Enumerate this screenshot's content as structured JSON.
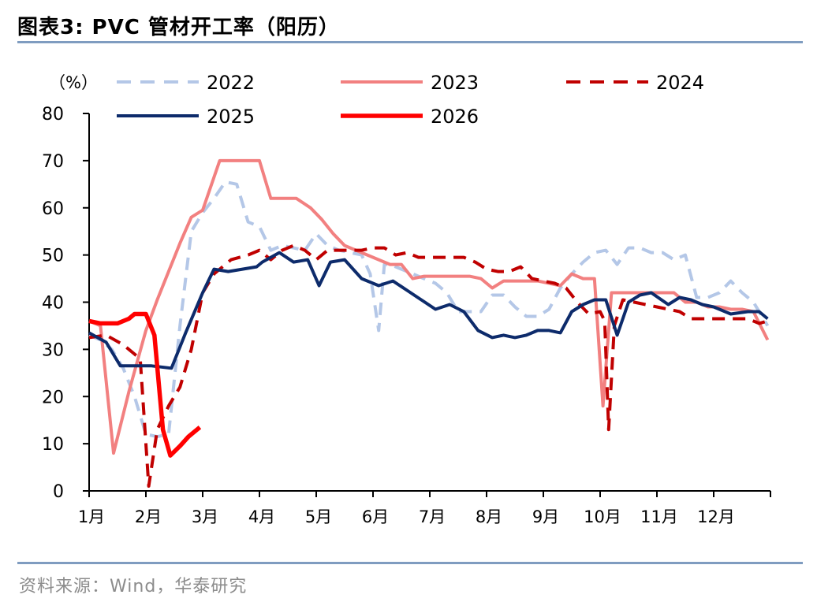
{
  "title": "图表3:  PVC 管材开工率（阳历）",
  "source": "资料来源：Wind，华泰研究",
  "chart_data": {
    "type": "line",
    "title": "PVC 管材开工率（阳历）",
    "ylabel": "（%）",
    "xlabel": "",
    "ylim": [
      0,
      80
    ],
    "yticks": [
      0,
      10,
      20,
      30,
      40,
      50,
      60,
      70,
      80
    ],
    "xlim": [
      1,
      13
    ],
    "categories": [
      "1月",
      "2月",
      "3月",
      "4月",
      "5月",
      "6月",
      "7月",
      "8月",
      "9月",
      "10月",
      "11月",
      "12月"
    ],
    "series": [
      {
        "name": "2022",
        "color": "#b4c7e7",
        "dash": "dashed",
        "width": 4,
        "x": [
          1.0,
          1.2,
          1.4,
          1.6,
          1.8,
          2.0,
          2.2,
          2.4,
          2.6,
          2.8,
          3.0,
          3.2,
          3.4,
          3.6,
          3.8,
          4.0,
          4.2,
          4.4,
          4.6,
          4.8,
          5.0,
          5.2,
          5.4,
          5.6,
          5.8,
          5.95,
          6.1,
          6.2,
          6.3,
          6.5,
          6.7,
          6.9,
          7.1,
          7.3,
          7.5,
          7.7,
          7.9,
          8.1,
          8.3,
          8.5,
          8.7,
          8.9,
          9.1,
          9.3,
          9.5,
          9.7,
          9.9,
          10.1,
          10.3,
          10.5,
          10.7,
          10.9,
          11.1,
          11.3,
          11.5,
          11.7,
          11.9,
          12.1,
          12.3,
          12.5,
          12.7,
          12.95
        ],
        "values": [
          33,
          32,
          30,
          26,
          20,
          12,
          11.5,
          12,
          35,
          55,
          59,
          62,
          65.5,
          65,
          57,
          56,
          51,
          52,
          51.5,
          51,
          54.5,
          52,
          51,
          50.5,
          50,
          46,
          34,
          48,
          48,
          47,
          46,
          45,
          44,
          42,
          38,
          38,
          38,
          41.5,
          41.5,
          39,
          37,
          37,
          38.5,
          43,
          46,
          48.5,
          50.5,
          51,
          48,
          51.5,
          51.5,
          50.5,
          50.5,
          49,
          50,
          41,
          41,
          42,
          44.5,
          42,
          40,
          35
        ]
      },
      {
        "name": "2023",
        "color": "#f28080",
        "dash": "solid",
        "width": 4,
        "x": [
          1.0,
          1.2,
          1.43,
          1.7,
          2.0,
          2.2,
          2.4,
          2.6,
          2.8,
          3.0,
          3.3,
          3.7,
          4.0,
          4.2,
          4.4,
          4.65,
          4.9,
          5.1,
          5.3,
          5.5,
          5.7,
          5.9,
          6.1,
          6.3,
          6.5,
          6.7,
          6.9,
          7.1,
          7.3,
          7.5,
          7.7,
          7.9,
          8.1,
          8.3,
          8.5,
          8.7,
          8.9,
          9.1,
          9.3,
          9.5,
          9.7,
          9.9,
          10.05,
          10.2,
          10.35,
          10.5,
          10.7,
          10.9,
          11.1,
          11.3,
          11.5,
          11.7,
          11.9,
          12.1,
          12.3,
          12.5,
          12.7,
          12.95
        ],
        "values": [
          36,
          35,
          8,
          21,
          34,
          40.5,
          46.5,
          52.5,
          58,
          59.5,
          70,
          70,
          70,
          62,
          62,
          62,
          60,
          57.5,
          54.5,
          52,
          51,
          50,
          49,
          48,
          48,
          45,
          45.5,
          45.5,
          45.5,
          45.5,
          45.5,
          45,
          43,
          44.5,
          44.5,
          44.5,
          44.5,
          44,
          43.5,
          46,
          45,
          45,
          18,
          42,
          42,
          42,
          42,
          42,
          42,
          42,
          40,
          40,
          39,
          39,
          38.5,
          38.5,
          38,
          32
        ]
      },
      {
        "name": "2024",
        "color": "#c00000",
        "dash": "dashed",
        "width": 4,
        "x": [
          1.0,
          1.3,
          1.6,
          1.8,
          1.9,
          2.0,
          2.05,
          2.2,
          2.4,
          2.6,
          2.8,
          3.0,
          3.2,
          3.5,
          3.8,
          4.0,
          4.2,
          4.4,
          4.6,
          4.8,
          5.0,
          5.2,
          5.4,
          5.6,
          5.8,
          6.0,
          6.2,
          6.4,
          6.6,
          6.8,
          7.0,
          7.2,
          7.4,
          7.6,
          7.8,
          8.0,
          8.2,
          8.4,
          8.6,
          8.8,
          9.0,
          9.2,
          9.4,
          9.6,
          9.8,
          10.0,
          10.08,
          10.15,
          10.25,
          10.4,
          10.6,
          10.8,
          11.0,
          11.2,
          11.4,
          11.6,
          11.8,
          12.0,
          12.2,
          12.4,
          12.6,
          12.8,
          12.95
        ],
        "values": [
          32.5,
          33,
          31,
          29,
          28,
          10,
          1,
          13,
          18,
          22,
          30,
          42,
          46,
          49,
          50,
          51,
          49,
          51,
          52,
          51,
          49,
          51,
          51,
          51,
          51,
          51.5,
          51.5,
          50,
          50.5,
          49.5,
          49.5,
          49.5,
          49.5,
          49.5,
          48.5,
          47,
          46.5,
          46.5,
          47.5,
          45,
          44.5,
          44,
          43,
          40,
          37.5,
          38,
          36,
          13,
          35,
          40.5,
          40,
          39.5,
          39,
          38.5,
          38,
          36.5,
          36.5,
          36.5,
          36.5,
          36.5,
          36.5,
          35.5,
          36
        ]
      },
      {
        "name": "2025",
        "color": "#0d2b6b",
        "dash": "solid",
        "width": 4,
        "x": [
          1.0,
          1.3,
          1.55,
          1.8,
          2.1,
          2.45,
          2.7,
          3.0,
          3.2,
          3.45,
          3.7,
          3.95,
          4.05,
          4.35,
          4.6,
          4.85,
          5.05,
          5.25,
          5.5,
          5.8,
          6.1,
          6.35,
          6.6,
          6.85,
          7.1,
          7.35,
          7.6,
          7.85,
          8.1,
          8.3,
          8.5,
          8.7,
          8.9,
          9.1,
          9.3,
          9.5,
          9.7,
          9.9,
          10.1,
          10.3,
          10.5,
          10.7,
          10.9,
          11.2,
          11.4,
          11.6,
          11.8,
          12.0,
          12.3,
          12.6,
          12.8,
          12.95
        ],
        "values": [
          33.5,
          31.5,
          26.5,
          26.5,
          26.5,
          26,
          33.5,
          42,
          47,
          46.5,
          47,
          47.5,
          48.5,
          50.5,
          48.5,
          49,
          43.5,
          48.5,
          49,
          45,
          43.5,
          44.5,
          42.5,
          40.5,
          38.5,
          39.5,
          38,
          34,
          32.5,
          33,
          32.5,
          33,
          34,
          34,
          33.5,
          38,
          39.5,
          40.5,
          40.5,
          33,
          40,
          41.5,
          42,
          39.5,
          41,
          40.5,
          39.5,
          39,
          37.5,
          38,
          38,
          36.5
        ]
      },
      {
        "name": "2026",
        "color": "#ff0000",
        "dash": "solid",
        "width": 5.5,
        "x": [
          1.0,
          1.2,
          1.5,
          1.7,
          1.8,
          2.0,
          2.15,
          2.3,
          2.43,
          2.6,
          2.75,
          2.95
        ],
        "values": [
          36,
          35.5,
          35.5,
          36.5,
          37.5,
          37.5,
          33,
          13,
          7.5,
          9.5,
          11.5,
          13.5
        ]
      }
    ],
    "legend": {
      "placement": "top",
      "columns": 3
    }
  }
}
